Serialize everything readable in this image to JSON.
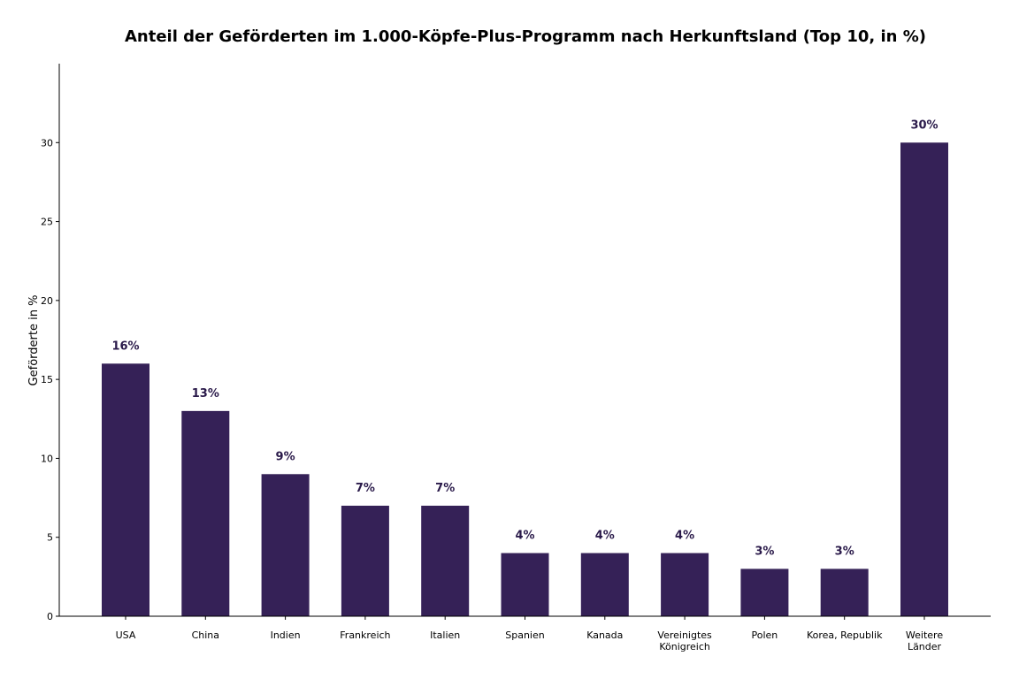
{
  "chart_data": {
    "type": "bar",
    "title": "Anteil der Geförderten im 1.000-Köpfe-Plus-Programm nach Herkunftsland (Top 10, in %)",
    "xlabel": "",
    "ylabel": "Geförderte in %",
    "categories": [
      [
        "USA"
      ],
      [
        "China"
      ],
      [
        "Indien"
      ],
      [
        "Frankreich"
      ],
      [
        "Italien"
      ],
      [
        "Spanien"
      ],
      [
        "Kanada"
      ],
      [
        "Vereinigtes",
        "Königreich"
      ],
      [
        "Polen"
      ],
      [
        "Korea, Republik"
      ],
      [
        "Weitere",
        "Länder"
      ]
    ],
    "values": [
      16,
      13,
      9,
      7,
      7,
      4,
      4,
      4,
      3,
      3,
      30
    ],
    "data_labels": [
      "16%",
      "13%",
      "9%",
      "7%",
      "7%",
      "4%",
      "4%",
      "4%",
      "3%",
      "3%",
      "30%"
    ],
    "yticks": [
      0,
      5,
      10,
      15,
      20,
      25,
      30
    ],
    "ytick_labels": [
      "0",
      "5",
      "10",
      "15",
      "20",
      "25",
      "30"
    ],
    "ylim": [
      0,
      35
    ],
    "grid": false,
    "legend": "none",
    "bar_color": "#352157",
    "label_color": "#2a1a4a"
  }
}
